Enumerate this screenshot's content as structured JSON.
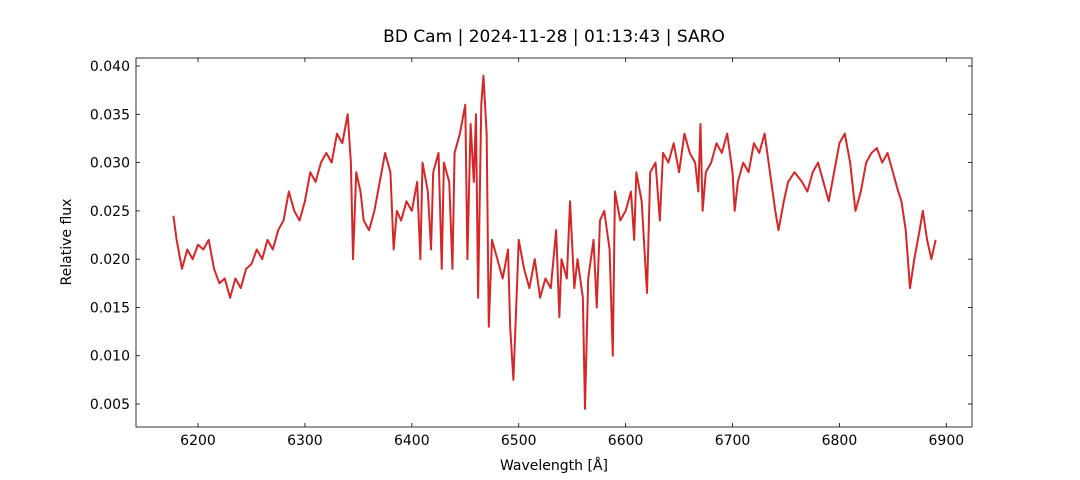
{
  "chart_data": {
    "type": "line",
    "title": "BD Cam | 2024-11-28 | 01:13:43 | SARO",
    "xlabel": "Wavelength [Å]",
    "ylabel": "Relative flux",
    "color": "#d62728",
    "x": [
      6177,
      6180,
      6185,
      6190,
      6195,
      6200,
      6205,
      6210,
      6215,
      6220,
      6225,
      6230,
      6235,
      6240,
      6245,
      6250,
      6255,
      6260,
      6265,
      6270,
      6275,
      6280,
      6285,
      6290,
      6295,
      6300,
      6305,
      6310,
      6315,
      6320,
      6325,
      6330,
      6335,
      6340,
      6343,
      6345,
      6348,
      6352,
      6355,
      6360,
      6365,
      6370,
      6375,
      6380,
      6383,
      6386,
      6390,
      6395,
      6400,
      6405,
      6408,
      6410,
      6415,
      6418,
      6420,
      6425,
      6428,
      6430,
      6435,
      6438,
      6440,
      6445,
      6450,
      6452,
      6455,
      6458,
      6460,
      6462,
      6465,
      6467,
      6470,
      6472,
      6475,
      6480,
      6485,
      6490,
      6492,
      6495,
      6498,
      6500,
      6505,
      6510,
      6515,
      6520,
      6525,
      6530,
      6535,
      6538,
      6540,
      6545,
      6548,
      6552,
      6555,
      6560,
      6562,
      6565,
      6570,
      6573,
      6576,
      6580,
      6585,
      6588,
      6590,
      6595,
      6600,
      6605,
      6608,
      6610,
      6615,
      6620,
      6623,
      6628,
      6632,
      6635,
      6640,
      6645,
      6650,
      6655,
      6660,
      6665,
      6668,
      6670,
      6672,
      6675,
      6680,
      6685,
      6690,
      6695,
      6700,
      6702,
      6705,
      6710,
      6715,
      6720,
      6725,
      6730,
      6735,
      6740,
      6743,
      6748,
      6752,
      6758,
      6765,
      6770,
      6775,
      6780,
      6785,
      6790,
      6795,
      6800,
      6805,
      6810,
      6815,
      6820,
      6825,
      6830,
      6835,
      6840,
      6845,
      6850,
      6855,
      6858,
      6862,
      6866,
      6870,
      6875,
      6878,
      6882,
      6886,
      6890
    ],
    "values": [
      0.0245,
      0.022,
      0.019,
      0.021,
      0.02,
      0.0215,
      0.021,
      0.022,
      0.019,
      0.0175,
      0.018,
      0.016,
      0.018,
      0.017,
      0.019,
      0.0195,
      0.021,
      0.02,
      0.022,
      0.021,
      0.023,
      0.024,
      0.027,
      0.025,
      0.024,
      0.026,
      0.029,
      0.028,
      0.03,
      0.031,
      0.03,
      0.033,
      0.032,
      0.035,
      0.03,
      0.02,
      0.029,
      0.027,
      0.024,
      0.023,
      0.025,
      0.028,
      0.031,
      0.029,
      0.021,
      0.025,
      0.024,
      0.026,
      0.025,
      0.028,
      0.02,
      0.03,
      0.027,
      0.021,
      0.029,
      0.031,
      0.019,
      0.03,
      0.028,
      0.019,
      0.031,
      0.033,
      0.036,
      0.02,
      0.034,
      0.028,
      0.035,
      0.016,
      0.036,
      0.039,
      0.033,
      0.013,
      0.022,
      0.02,
      0.018,
      0.021,
      0.013,
      0.0075,
      0.016,
      0.022,
      0.019,
      0.017,
      0.02,
      0.016,
      0.018,
      0.017,
      0.023,
      0.014,
      0.02,
      0.018,
      0.026,
      0.017,
      0.02,
      0.016,
      0.0045,
      0.018,
      0.022,
      0.015,
      0.024,
      0.025,
      0.021,
      0.01,
      0.027,
      0.024,
      0.025,
      0.027,
      0.022,
      0.029,
      0.026,
      0.0165,
      0.029,
      0.03,
      0.024,
      0.031,
      0.03,
      0.032,
      0.029,
      0.033,
      0.031,
      0.03,
      0.027,
      0.034,
      0.025,
      0.029,
      0.03,
      0.032,
      0.031,
      0.033,
      0.029,
      0.025,
      0.028,
      0.03,
      0.029,
      0.032,
      0.031,
      0.033,
      0.029,
      0.025,
      0.023,
      0.026,
      0.028,
      0.029,
      0.028,
      0.027,
      0.029,
      0.03,
      0.028,
      0.026,
      0.029,
      0.032,
      0.033,
      0.03,
      0.025,
      0.027,
      0.03,
      0.031,
      0.0315,
      0.03,
      0.031,
      0.029,
      0.027,
      0.026,
      0.023,
      0.017,
      0.02,
      0.023,
      0.025,
      0.022,
      0.02,
      0.022
    ],
    "xlim": [
      6142,
      6924
    ],
    "ylim": [
      0.00262,
      0.04083
    ],
    "xticks": [
      6200,
      6300,
      6400,
      6500,
      6600,
      6700,
      6800,
      6900
    ],
    "yticks": [
      0.005,
      {
        "value": 0.01,
        "label": "0.010"
      },
      0.015,
      {
        "value": 0.02,
        "label": "0.020"
      },
      0.025,
      {
        "value": 0.03,
        "label": "0.030"
      },
      0.035,
      {
        "value": 0.04,
        "label": "0.040"
      }
    ]
  }
}
